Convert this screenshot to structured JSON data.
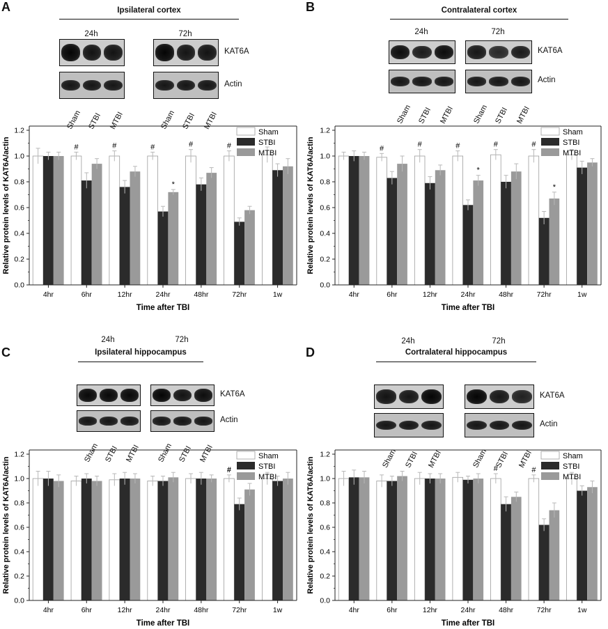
{
  "panels": [
    {
      "letter": "A",
      "blot": {
        "title": "Ipsilateral cortex",
        "timepoints": [
          "24h",
          "72h"
        ],
        "proteins": [
          "KAT6A",
          "Actin"
        ],
        "lanes": [
          "Sham",
          "STBI",
          "MTBI"
        ]
      },
      "chart_data": {
        "type": "bar",
        "categories": [
          "4hr",
          "6hr",
          "12hr",
          "24hr",
          "48hr",
          "72hr",
          "1w"
        ],
        "series": [
          {
            "name": "Sham",
            "values": [
              1.0,
              1.0,
              1.0,
              1.0,
              1.0,
              1.0,
              1.01
            ],
            "errors": [
              0.06,
              0.03,
              0.04,
              0.03,
              0.05,
              0.04,
              0.06
            ]
          },
          {
            "name": "STBI",
            "values": [
              1.0,
              0.81,
              0.76,
              0.57,
              0.78,
              0.49,
              0.89
            ],
            "errors": [
              0.03,
              0.06,
              0.05,
              0.04,
              0.05,
              0.03,
              0.05
            ]
          },
          {
            "name": "MTBI",
            "values": [
              1.0,
              0.94,
              0.88,
              0.72,
              0.87,
              0.58,
              0.92
            ],
            "errors": [
              0.03,
              0.04,
              0.04,
              0.02,
              0.04,
              0.03,
              0.06
            ]
          }
        ],
        "markers": [
          {
            "category": "6hr",
            "series": "Sham",
            "symbol": "#"
          },
          {
            "category": "12hr",
            "series": "Sham",
            "symbol": "#"
          },
          {
            "category": "24hr",
            "series": "Sham",
            "symbol": "#"
          },
          {
            "category": "48hr",
            "series": "Sham",
            "symbol": "#"
          },
          {
            "category": "72hr",
            "series": "Sham",
            "symbol": "#"
          },
          {
            "category": "24hr",
            "series": "MTBI",
            "symbol": "*"
          }
        ],
        "xlabel": "Time after TBI",
        "ylabel": "Relative protein levels of KAT6A/actin",
        "ylim": [
          0,
          1.2
        ],
        "yticks": [
          "0.0",
          "0.2",
          "0.4",
          "0.6",
          "0.8",
          "1.0",
          "1.2"
        ],
        "legend": "top-right"
      }
    },
    {
      "letter": "B",
      "blot": {
        "title": "Contralateral cortex",
        "timepoints": [
          "24h",
          "72h"
        ],
        "proteins": [
          "KAT6A",
          "Actin"
        ],
        "lanes": [
          "Sham",
          "STBI",
          "MTBI"
        ]
      },
      "chart_data": {
        "type": "bar",
        "categories": [
          "4hr",
          "6hr",
          "12hr",
          "24hr",
          "48hr",
          "72hr",
          "1w"
        ],
        "series": [
          {
            "name": "Sham",
            "values": [
              1.0,
              0.99,
              1.0,
              1.0,
              1.01,
              1.0,
              1.01
            ],
            "errors": [
              0.03,
              0.03,
              0.05,
              0.04,
              0.04,
              0.05,
              0.04
            ]
          },
          {
            "name": "STBI",
            "values": [
              1.0,
              0.83,
              0.79,
              0.62,
              0.8,
              0.52,
              0.91
            ],
            "errors": [
              0.04,
              0.05,
              0.05,
              0.04,
              0.05,
              0.05,
              0.05
            ]
          },
          {
            "name": "MTBI",
            "values": [
              1.0,
              0.94,
              0.89,
              0.81,
              0.88,
              0.67,
              0.95
            ],
            "errors": [
              0.03,
              0.06,
              0.04,
              0.04,
              0.06,
              0.05,
              0.03
            ]
          }
        ],
        "markers": [
          {
            "category": "6hr",
            "series": "Sham",
            "symbol": "#"
          },
          {
            "category": "12hr",
            "series": "Sham",
            "symbol": "#"
          },
          {
            "category": "24hr",
            "series": "Sham",
            "symbol": "#"
          },
          {
            "category": "48hr",
            "series": "Sham",
            "symbol": "#"
          },
          {
            "category": "72hr",
            "series": "Sham",
            "symbol": "#"
          },
          {
            "category": "24hr",
            "series": "MTBI",
            "symbol": "*"
          },
          {
            "category": "72hr",
            "series": "MTBI",
            "symbol": "*"
          }
        ],
        "xlabel": "Time after TBI",
        "ylabel": "Relative protein levels of KAT6A/actin",
        "ylim": [
          0,
          1.2
        ],
        "yticks": [
          "0.0",
          "0.2",
          "0.4",
          "0.6",
          "0.8",
          "1.0",
          "1.2"
        ],
        "legend": "top-right"
      }
    },
    {
      "letter": "C",
      "blot": {
        "title": "Ipsilateral hippocampus",
        "timepoints": [
          "24h",
          "72h"
        ],
        "proteins": [
          "KAT6A",
          "Actin"
        ],
        "lanes": [
          "Sham",
          "STBI",
          "MTBI"
        ]
      },
      "chart_data": {
        "type": "bar",
        "categories": [
          "4hr",
          "6hr",
          "12hr",
          "24hr",
          "48hr",
          "72hr",
          "1w"
        ],
        "series": [
          {
            "name": "Sham",
            "values": [
              1.0,
              0.98,
              0.99,
              0.98,
              1.0,
              1.0,
              1.0
            ],
            "errors": [
              0.06,
              0.04,
              0.05,
              0.04,
              0.04,
              0.03,
              0.05
            ]
          },
          {
            "name": "STBI",
            "values": [
              1.0,
              1.0,
              1.0,
              0.98,
              1.0,
              0.79,
              0.98
            ],
            "errors": [
              0.06,
              0.04,
              0.05,
              0.04,
              0.05,
              0.05,
              0.04
            ]
          },
          {
            "name": "MTBI",
            "values": [
              0.98,
              0.98,
              1.0,
              1.01,
              1.0,
              0.91,
              1.0
            ],
            "errors": [
              0.05,
              0.04,
              0.04,
              0.04,
              0.03,
              0.05,
              0.05
            ]
          }
        ],
        "markers": [
          {
            "category": "72hr",
            "series": "Sham",
            "symbol": "#"
          }
        ],
        "xlabel": "Time after TBI",
        "ylabel": "Relative protein levels of KAT6A/actin",
        "ylim": [
          0,
          1.2
        ],
        "yticks": [
          "0.0",
          "0.2",
          "0.4",
          "0.6",
          "0.8",
          "1.0",
          "1.2"
        ],
        "legend": "top-right"
      }
    },
    {
      "letter": "D",
      "blot": {
        "title": "Cortralateral hippocampus",
        "timepoints": [
          "24h",
          "72h"
        ],
        "proteins": [
          "KAT6A",
          "Actin"
        ],
        "lanes": [
          "Sham",
          "STBI",
          "MTBI"
        ]
      },
      "chart_data": {
        "type": "bar",
        "categories": [
          "4hr",
          "6hr",
          "12hr",
          "24hr",
          "48hr",
          "72hr",
          "1w"
        ],
        "series": [
          {
            "name": "Sham",
            "values": [
              1.0,
              0.98,
              1.0,
              1.01,
              1.0,
              1.0,
              1.0
            ],
            "errors": [
              0.06,
              0.05,
              0.05,
              0.04,
              0.04,
              0.03,
              0.05
            ]
          },
          {
            "name": "STBI",
            "values": [
              1.01,
              0.98,
              1.0,
              0.99,
              0.79,
              0.62,
              0.9
            ],
            "errors": [
              0.06,
              0.04,
              0.04,
              0.03,
              0.06,
              0.05,
              0.04
            ]
          },
          {
            "name": "MTBI",
            "values": [
              1.01,
              1.02,
              1.0,
              1.0,
              0.85,
              0.74,
              0.93
            ],
            "errors": [
              0.05,
              0.04,
              0.04,
              0.04,
              0.04,
              0.06,
              0.05
            ]
          }
        ],
        "markers": [
          {
            "category": "48hr",
            "series": "Sham",
            "symbol": "#"
          },
          {
            "category": "72hr",
            "series": "Sham",
            "symbol": "#"
          }
        ],
        "xlabel": "Time after TBI",
        "ylabel": "Relative protein levels of KAT6A/actin",
        "ylim": [
          0,
          1.2
        ],
        "yticks": [
          "0.0",
          "0.2",
          "0.4",
          "0.6",
          "0.8",
          "1.0",
          "1.2"
        ],
        "legend": "top-right"
      }
    }
  ],
  "colors": {
    "Sham": "#ffffff",
    "STBI": "#2b2b2b",
    "MTBI": "#9a9a9a",
    "axis": "#222222",
    "error": "#b8b8b8"
  }
}
